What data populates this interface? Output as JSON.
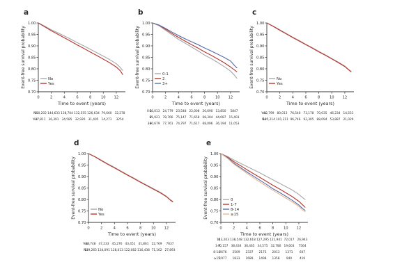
{
  "figure": {
    "background": "#ffffff",
    "axis_color": "#3a3a3a",
    "text_color": "#2b2b2b",
    "risk_text_color": "#4a4a4a",
    "colors": {
      "gray": "#a9a9a9",
      "red": "#b5382e",
      "blue": "#5a6fa8",
      "orange": "#eab894"
    }
  },
  "chart_data": [
    {
      "panel": "a",
      "type": "line",
      "row": "top",
      "xlabel": "Time to event (years)",
      "ylabel": "Event-free survival probability",
      "xlim": [
        0,
        13.4
      ],
      "ylim": [
        0.7,
        1.0
      ],
      "xticks": [
        0,
        2,
        4,
        6,
        8,
        10,
        12
      ],
      "yticks": [
        1.0,
        0.95,
        0.9,
        0.85,
        0.8,
        0.75,
        0.7
      ],
      "legend_position": "bottom-left",
      "series": [
        {
          "name": "No",
          "color": "#a9a9a9",
          "x": [
            0,
            1,
            2,
            3,
            4,
            5,
            6,
            7,
            8,
            9,
            10,
            11,
            12,
            12.6,
            13
          ],
          "y": [
            1.0,
            0.986,
            0.97,
            0.957,
            0.943,
            0.929,
            0.914,
            0.9,
            0.885,
            0.87,
            0.855,
            0.84,
            0.822,
            0.806,
            0.792
          ]
        },
        {
          "name": "Yes",
          "color": "#b5382e",
          "x": [
            0,
            1,
            2,
            3,
            4,
            5,
            6,
            7,
            8,
            9,
            10,
            11,
            12,
            12.6,
            13
          ],
          "y": [
            1.0,
            0.983,
            0.966,
            0.951,
            0.935,
            0.92,
            0.904,
            0.889,
            0.873,
            0.858,
            0.842,
            0.826,
            0.808,
            0.792,
            0.774
          ]
        }
      ],
      "risk_table": [
        {
          "label": "No",
          "counts": [
            "150,202",
            "144,633",
            "138,704",
            "132,555",
            "126,634",
            "79,660",
            "32,278"
          ]
        },
        {
          "label": "Yes",
          "counts": [
            "37,811",
            "36,391",
            "34,585",
            "32,926",
            "31,405",
            "14,271",
            "3254"
          ]
        }
      ]
    },
    {
      "panel": "b",
      "type": "line",
      "row": "top",
      "xlabel": "Time to event (years)",
      "ylabel": "Event-free survival probability",
      "xlim": [
        0,
        13.4
      ],
      "ylim": [
        0.7,
        1.0
      ],
      "xticks": [
        0,
        2,
        4,
        6,
        8,
        10,
        12
      ],
      "yticks": [
        1.0,
        0.95,
        0.9,
        0.85,
        0.8,
        0.75,
        0.7
      ],
      "legend_position": "bottom-left",
      "series": [
        {
          "name": "0-1",
          "color": "#a9a9a9",
          "x": [
            0,
            1,
            2,
            3,
            4,
            5,
            6,
            7,
            8,
            9,
            10,
            11,
            12,
            12.6,
            13
          ],
          "y": [
            1.0,
            0.988,
            0.968,
            0.948,
            0.928,
            0.912,
            0.895,
            0.878,
            0.86,
            0.845,
            0.828,
            0.81,
            0.79,
            0.772,
            0.758
          ]
        },
        {
          "name": "2",
          "color": "#b5382e",
          "x": [
            0,
            1,
            2,
            3,
            4,
            5,
            6,
            7,
            8,
            9,
            10,
            11,
            12,
            12.6,
            13
          ],
          "y": [
            1.0,
            0.99,
            0.972,
            0.954,
            0.937,
            0.921,
            0.905,
            0.89,
            0.874,
            0.859,
            0.843,
            0.827,
            0.808,
            0.795,
            0.786
          ]
        },
        {
          "name": "3+",
          "color": "#5a6fa8",
          "x": [
            0,
            1,
            2,
            3,
            4,
            5,
            6,
            7,
            8,
            9,
            10,
            11,
            12,
            12.6,
            13
          ],
          "y": [
            1.0,
            0.991,
            0.976,
            0.96,
            0.945,
            0.931,
            0.918,
            0.905,
            0.891,
            0.878,
            0.864,
            0.85,
            0.834,
            0.815,
            0.803
          ]
        }
      ],
      "risk_table": [
        {
          "label": "0-1",
          "counts": [
            "26,013",
            "24,779",
            "23,548",
            "22,008",
            "20,690",
            "13,850",
            "5847"
          ]
        },
        {
          "label": "2",
          "counts": [
            "81,921",
            "78,766",
            "75,147",
            "71,658",
            "68,304",
            "44,087",
            "15,403"
          ]
        },
        {
          "label": "3+",
          "counts": [
            "80,679",
            "77,761",
            "74,797",
            "71,617",
            "68,096",
            "36,194",
            "11,053"
          ]
        }
      ]
    },
    {
      "panel": "c",
      "type": "line",
      "row": "top",
      "xlabel": "Time to event (years)",
      "ylabel": "Event-free survival probability",
      "xlim": [
        0,
        13.4
      ],
      "ylim": [
        0.7,
        1.0
      ],
      "xticks": [
        0,
        2,
        4,
        6,
        8,
        10,
        12
      ],
      "yticks": [
        1.0,
        0.95,
        0.9,
        0.85,
        0.8,
        0.75,
        0.7
      ],
      "legend_position": "bottom-left",
      "series": [
        {
          "name": "No",
          "color": "#a9a9a9",
          "x": [
            0,
            1,
            2,
            3,
            4,
            5,
            6,
            7,
            8,
            9,
            10,
            11,
            12,
            12.6,
            13
          ],
          "y": [
            1.0,
            0.986,
            0.97,
            0.954,
            0.938,
            0.923,
            0.907,
            0.892,
            0.876,
            0.861,
            0.845,
            0.829,
            0.812,
            0.797,
            0.788
          ]
        },
        {
          "name": "Yes",
          "color": "#b5382e",
          "x": [
            0,
            1,
            2,
            3,
            4,
            5,
            6,
            7,
            8,
            9,
            10,
            11,
            12,
            12.6,
            13
          ],
          "y": [
            1.0,
            0.985,
            0.968,
            0.952,
            0.936,
            0.921,
            0.905,
            0.89,
            0.874,
            0.859,
            0.843,
            0.827,
            0.81,
            0.795,
            0.786
          ]
        }
      ],
      "risk_table": [
        {
          "label": "Yes",
          "counts": [
            "82,799",
            "80,013",
            "76,540",
            "73,178",
            "70,035",
            "46,234",
            "14,551"
          ]
        },
        {
          "label": "No",
          "counts": [
            "105,214",
            "101,211",
            "96,746",
            "92,305",
            "88,094",
            "53,887",
            "21,029"
          ]
        }
      ]
    },
    {
      "panel": "d",
      "type": "line",
      "row": "bottom",
      "xlabel": "Time to event (years)",
      "ylabel": "Event-free survival probability",
      "xlim": [
        0,
        13.4
      ],
      "ylim": [
        0.7,
        1.0
      ],
      "xticks": [
        0,
        2,
        4,
        6,
        8,
        10,
        12
      ],
      "yticks": [
        1.0,
        0.95,
        0.9,
        0.85,
        0.8,
        0.75,
        0.7
      ],
      "legend_position": "bottom-left",
      "series": [
        {
          "name": "No",
          "color": "#a9a9a9",
          "x": [
            0,
            1,
            2,
            3,
            4,
            5,
            6,
            7,
            8,
            9,
            10,
            11,
            12,
            12.6,
            13
          ],
          "y": [
            1.0,
            0.987,
            0.971,
            0.955,
            0.94,
            0.924,
            0.908,
            0.893,
            0.877,
            0.862,
            0.847,
            0.832,
            0.814,
            0.799,
            0.791
          ]
        },
        {
          "name": "Yes",
          "color": "#b5382e",
          "x": [
            0,
            1,
            2,
            3,
            4,
            5,
            6,
            7,
            8,
            9,
            10,
            11,
            12,
            12.6,
            13
          ],
          "y": [
            1.0,
            0.986,
            0.969,
            0.953,
            0.938,
            0.922,
            0.906,
            0.891,
            0.875,
            0.86,
            0.845,
            0.83,
            0.812,
            0.797,
            0.789
          ]
        }
      ],
      "risk_table": [
        {
          "label": "Yes",
          "counts": [
            "48,748",
            "47,233",
            "45,276",
            "43,451",
            "41,861",
            "22,769",
            "7637"
          ]
        },
        {
          "label": "No",
          "counts": [
            "139,265",
            "134,091",
            "128,013",
            "122,082",
            "116,438",
            "71,162",
            "27,893"
          ]
        }
      ]
    },
    {
      "panel": "e",
      "type": "line",
      "row": "bottom",
      "xlabel": "Time to event (years)",
      "ylabel": "Event-free survival probability",
      "xlim": [
        0,
        13.4
      ],
      "ylim": [
        0.7,
        1.0
      ],
      "xticks": [
        0,
        2,
        4,
        6,
        8,
        10,
        12
      ],
      "yticks": [
        1.0,
        0.95,
        0.9,
        0.85,
        0.8,
        0.75,
        0.7
      ],
      "legend_position": "bottom-left",
      "series": [
        {
          "name": "0",
          "color": "#a9a9a9",
          "x": [
            0,
            1,
            2,
            3,
            4,
            5,
            6,
            7,
            8,
            9,
            10,
            11,
            12,
            12.6,
            13
          ],
          "y": [
            1.0,
            0.988,
            0.972,
            0.958,
            0.944,
            0.93,
            0.916,
            0.901,
            0.886,
            0.871,
            0.856,
            0.841,
            0.822,
            0.808,
            0.799
          ]
        },
        {
          "name": "1-7",
          "color": "#b5382e",
          "x": [
            0,
            1,
            2,
            3,
            4,
            5,
            6,
            7,
            8,
            9,
            10,
            11,
            12,
            12.6,
            13
          ],
          "y": [
            1.0,
            0.985,
            0.965,
            0.948,
            0.93,
            0.913,
            0.896,
            0.879,
            0.862,
            0.846,
            0.829,
            0.812,
            0.792,
            0.776,
            0.765
          ]
        },
        {
          "name": "8-14",
          "color": "#5a6fa8",
          "x": [
            0,
            1,
            2,
            3,
            4,
            5,
            6,
            7,
            8,
            9,
            10,
            11,
            12,
            12.6,
            13
          ],
          "y": [
            1.0,
            0.982,
            0.958,
            0.939,
            0.92,
            0.902,
            0.884,
            0.866,
            0.847,
            0.831,
            0.814,
            0.796,
            0.776,
            0.76,
            0.752
          ]
        },
        {
          "name": "≥15",
          "color": "#eab894",
          "x": [
            0,
            1,
            2,
            3,
            4,
            5,
            6,
            7,
            8,
            9,
            10,
            11,
            12,
            12.6,
            13
          ],
          "y": [
            1.0,
            0.98,
            0.954,
            0.934,
            0.914,
            0.895,
            0.876,
            0.858,
            0.84,
            0.823,
            0.806,
            0.789,
            0.77,
            0.753,
            0.746
          ]
        }
      ],
      "risk_table": [
        {
          "label": "0",
          "counts": [
            "143,203",
            "138,548",
            "132,618",
            "127,295",
            "121,941",
            "72,017",
            "26,943"
          ]
        },
        {
          "label": "1-7",
          "counts": [
            "40,157",
            "38,434",
            "36,465",
            "34,575",
            "32,780",
            "19,603",
            "7564"
          ]
        },
        {
          "label": "8-14",
          "counts": [
            "2676",
            "2509",
            "2337",
            "2175",
            "2013",
            "1371",
            "607"
          ]
        },
        {
          "label": "≥15",
          "counts": [
            "1977",
            "1833",
            "1689",
            "1498",
            "1358",
            "940",
            "416"
          ]
        }
      ]
    }
  ]
}
